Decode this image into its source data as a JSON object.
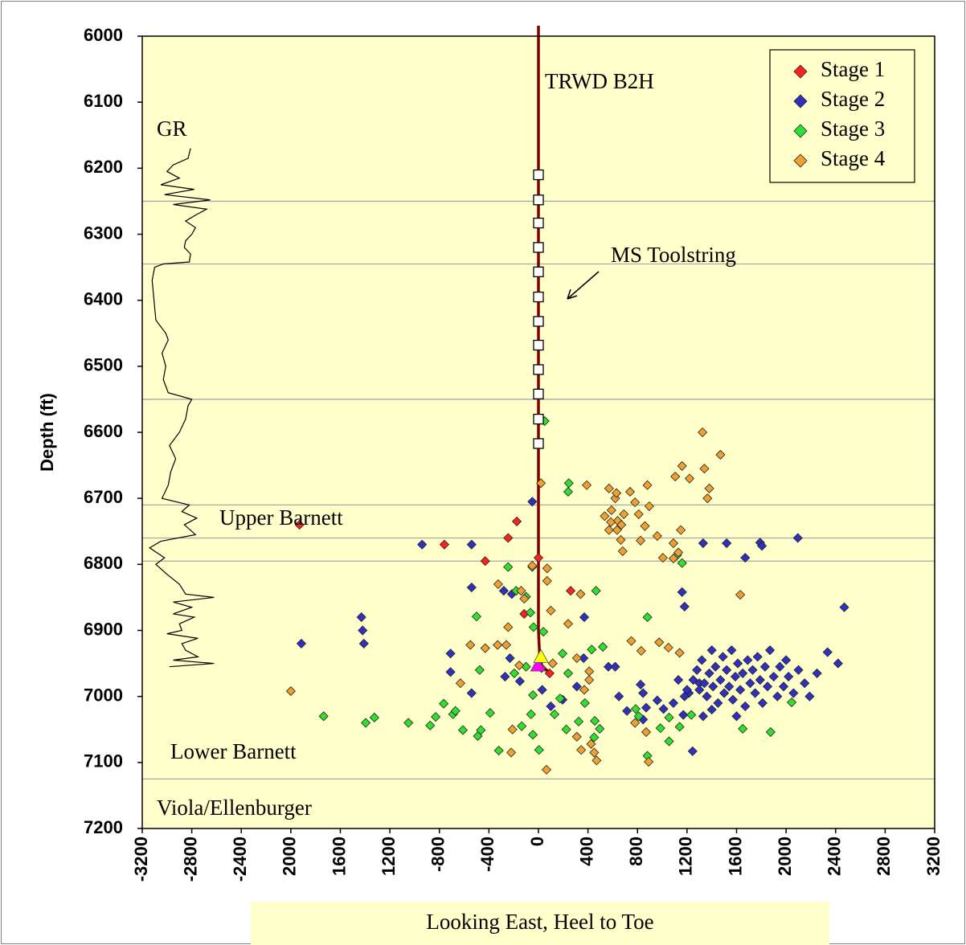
{
  "chart_data": {
    "type": "scatter",
    "xlabel": "Looking East, Heel to Toe",
    "ylabel": "Depth (ft)",
    "xlim": [
      -3200,
      3200
    ],
    "ylim": [
      7200,
      6000
    ],
    "xticks": [
      -3200,
      -2800,
      -2400,
      {
        "value": -2000,
        "label": "2000"
      },
      {
        "value": -1600,
        "label": "1600"
      },
      {
        "value": -1200,
        "label": "1200"
      },
      -800,
      -400,
      0,
      400,
      800,
      1200,
      1600,
      2000,
      2400,
      2800,
      3200
    ],
    "yticks": [
      6000,
      6100,
      6200,
      6300,
      6400,
      6500,
      6600,
      6700,
      6800,
      6900,
      7000,
      7100,
      7200
    ],
    "background": "#ffffcc",
    "legend": "upper right",
    "horizons": {
      "color": "#a8a8a8",
      "values": [
        6250,
        6345,
        6550,
        6710,
        6760,
        6795,
        7125
      ]
    },
    "annotations": [
      "Upper Barnett",
      "Lower Barnett",
      "Viola/Ellenburger"
    ],
    "gamma_ray": {
      "name": "GR",
      "color": "#000000",
      "x": [
        -2810,
        -2830,
        -2950,
        -3000,
        -2900,
        -3050,
        -2780,
        -3020,
        -2650,
        -2950,
        -2680,
        -2760,
        -2850,
        -2770,
        -2800,
        -2850,
        -2860,
        -2810,
        -2820,
        -3030,
        -3100,
        -3120,
        -3110,
        -3100,
        -3090,
        -3010,
        -2990,
        -3040,
        -3010,
        -3030,
        -2990,
        -2800,
        -2830,
        -2850,
        -2900,
        -2980,
        -2930,
        -2970,
        -2990,
        -3040,
        -2820,
        -2880,
        -2760,
        -2860,
        -2770,
        -3050,
        -3140,
        -3020,
        -3090,
        -3000,
        -2900,
        -2850,
        -2620,
        -2950,
        -2800,
        -2950,
        -2780,
        -2900,
        -2880,
        -3000,
        -2750,
        -2880,
        -2850,
        -2750,
        -2950,
        -2620,
        -2980
      ],
      "y": [
        6170,
        6185,
        6195,
        6205,
        6215,
        6225,
        6232,
        6240,
        6248,
        6255,
        6262,
        6270,
        6280,
        6290,
        6300,
        6310,
        6320,
        6330,
        6342,
        6345,
        6350,
        6370,
        6390,
        6410,
        6430,
        6450,
        6460,
        6480,
        6500,
        6520,
        6540,
        6550,
        6560,
        6580,
        6600,
        6620,
        6640,
        6660,
        6680,
        6700,
        6710,
        6720,
        6730,
        6740,
        6755,
        6765,
        6775,
        6790,
        6800,
        6815,
        6830,
        6845,
        6850,
        6857,
        6865,
        6875,
        6880,
        6890,
        6900,
        6905,
        6912,
        6920,
        6930,
        6940,
        6945,
        6950,
        6955
      ]
    },
    "well": {
      "name": "TRWD B2H",
      "color": "#800000",
      "x": [
        0,
        0,
        10,
        30,
        100
      ],
      "y": [
        6000,
        6900,
        6940,
        6955,
        6965
      ]
    },
    "toolstring": {
      "name": "MS Toolstring",
      "x": [
        0,
        0,
        0,
        0,
        0,
        0,
        0,
        0,
        0,
        0,
        0,
        0
      ],
      "y": [
        6210,
        6248,
        6283,
        6320,
        6357,
        6395,
        6432,
        6468,
        6505,
        6542,
        6580,
        6617
      ]
    },
    "perf_markers": {
      "colors": [
        "#ff00ff",
        "#ffff00"
      ],
      "x": [
        -5,
        20
      ],
      "y": [
        6953,
        6940
      ]
    },
    "series": [
      {
        "name": "Stage 1",
        "color": "#ff2020",
        "x": [
          -1930,
          -760,
          -430,
          -245,
          -175,
          -115,
          0,
          260,
          25,
          90
        ],
        "y": [
          6740,
          6770,
          6795,
          6760,
          6735,
          6875,
          6790,
          6840,
          6957,
          6965
        ]
      },
      {
        "name": "Stage 2",
        "color": "#3030c0",
        "x": [
          -1915,
          -1430,
          -1420,
          -1410,
          -940,
          -540,
          -540,
          -280,
          -50,
          -215,
          370,
          -710,
          -710,
          -540,
          -270,
          -230,
          -150,
          30,
          100,
          195,
          310,
          365,
          565,
          620,
          650,
          715,
          845,
          825,
          845,
          870,
          960,
          1010,
          1090,
          1170,
          1245,
          1215,
          1300,
          1160,
          1180,
          1330,
          1520,
          1790,
          1805,
          1670,
          2095,
          2470,
          2420,
          2335,
          1250,
          1280,
          1300,
          1320,
          1340,
          1360,
          1380,
          1400,
          1410,
          1430,
          1450,
          1470,
          1490,
          1500,
          1520,
          1540,
          1560,
          1570,
          1590,
          1610,
          1630,
          1650,
          1670,
          1690,
          1710,
          1730,
          1750,
          1770,
          1790,
          1810,
          1830,
          1850,
          1870,
          1900,
          1930,
          1950,
          1980,
          2000,
          2020,
          2060,
          2100,
          2150,
          2190,
          2250,
          1400,
          1600,
          1200,
          1330,
          1130,
          1180
        ],
        "y": [
          6920,
          6880,
          6900,
          6920,
          6770,
          6770,
          6835,
          6840,
          6705,
          6845,
          6880,
          6935,
          6963,
          6995,
          6970,
          6942,
          6977,
          6990,
          7015,
          7005,
          6985,
          6942,
          6955,
          6955,
          7000,
          7022,
          7035,
          6982,
          6995,
          7017,
          7006,
          7019,
          7010,
          7028,
          7083,
          6995,
          6980,
          6842,
          6864,
          6768,
          6768,
          6767,
          6772,
          6790,
          6760,
          6865,
          6950,
          6933,
          6975,
          6960,
          6990,
          6945,
          6980,
          7000,
          6965,
          6930,
          6985,
          6955,
          7010,
          6975,
          6940,
          6995,
          6960,
          6985,
          6930,
          7005,
          6970,
          6950,
          6990,
          6965,
          7015,
          6945,
          6980,
          6960,
          6995,
          6940,
          6975,
          7010,
          6955,
          6985,
          6930,
          6970,
          7000,
          6955,
          6985,
          6945,
          6970,
          6995,
          6960,
          6980,
          7000,
          6965,
          7020,
          7030,
          6990,
          7030,
          6975,
          7000
        ]
      },
      {
        "name": "Stage 3",
        "color": "#30e030",
        "x": [
          50,
          245,
          240,
          -245,
          -50,
          -180,
          -100,
          465,
          880,
          -500,
          -65,
          -40,
          40,
          195,
          430,
          520,
          -475,
          -195,
          -100,
          -45,
          240,
          -1735,
          -1325,
          -1395,
          -1050,
          -875,
          -830,
          -765,
          -690,
          -670,
          -610,
          -490,
          -465,
          -390,
          -320,
          -135,
          -60,
          -45,
          5,
          130,
          175,
          225,
          325,
          375,
          455,
          450,
          495,
          785,
          810,
          880,
          985,
          1055,
          1140,
          1055,
          1235,
          1650,
          1875,
          2045,
          1160,
          1120
        ],
        "y": [
          6583,
          6677,
          6690,
          6804,
          6804,
          6840,
          6849,
          6840,
          6880,
          6879,
          6873,
          6895,
          6902,
          6935,
          6929,
          6925,
          6960,
          6965,
          6955,
          6998,
          6965,
          7030,
          7032,
          7040,
          7040,
          7044,
          7031,
          7011,
          7027,
          7022,
          7051,
          7060,
          7051,
          7025,
          7082,
          7045,
          7027,
          7058,
          7081,
          7027,
          7003,
          7050,
          7038,
          7010,
          7037,
          7062,
          7049,
          7019,
          7030,
          7090,
          7048,
          7032,
          7046,
          7068,
          7028,
          7049,
          7054,
          7009,
          6798,
          6786
        ]
      },
      {
        "name": "Stage 4",
        "color": "#f0a030",
        "x": [
          -2000,
          -630,
          -550,
          -430,
          -330,
          -245,
          -260,
          -155,
          -325,
          -140,
          -115,
          20,
          -50,
          70,
          70,
          100,
          240,
          115,
          310,
          410,
          410,
          370,
          -210,
          -220,
          65,
          310,
          345,
          450,
          470,
          425,
          780,
          870,
          890,
          750,
          830,
          975,
          1050,
          1140,
          340,
          390,
          570,
          620,
          590,
          640,
          570,
          665,
          740,
          780,
          810,
          860,
          880,
          895,
          960,
          1005,
          1090,
          1130,
          1090,
          1150,
          1105,
          1160,
          1220,
          1325,
          1470,
          1340,
          1380,
          1365,
          1630,
          630,
          690,
          585,
          635,
          535,
          680,
          825,
          670
        ],
        "y": [
          6992,
          6980,
          6922,
          6927,
          6922,
          6895,
          6922,
          6953,
          6830,
          6840,
          6852,
          6677,
          6802,
          6806,
          6825,
          6870,
          6890,
          6950,
          6942,
          6962,
          6975,
          6990,
          7050,
          7085,
          7111,
          7061,
          7081,
          7085,
          7097,
          7072,
          7040,
          7054,
          7099,
          6916,
          6931,
          6918,
          6926,
          6934,
          6845,
          6680,
          6685,
          6700,
          6718,
          6734,
          6748,
          6763,
          6690,
          6706,
          6724,
          6742,
          6680,
          6712,
          6757,
          6790,
          6791,
          6782,
          6768,
          6748,
          6667,
          6651,
          6670,
          6600,
          6634,
          6655,
          6685,
          6700,
          6846,
          6692,
          6724,
          6736,
          6748,
          6727,
          6780,
          6764,
          6740
        ]
      }
    ]
  }
}
